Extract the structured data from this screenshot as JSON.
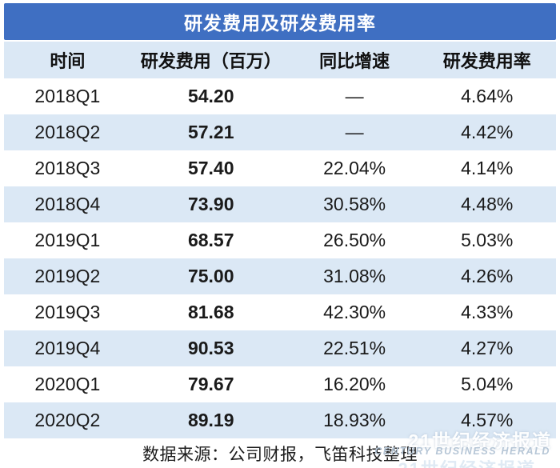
{
  "title": "研发费用及研发费用率",
  "table": {
    "headers": {
      "period": "时间",
      "expense": "研发费用（百万）",
      "yoy": "同比增速",
      "ratio": "研发费用率"
    },
    "rows": [
      {
        "period": "2018Q1",
        "expense": "54.20",
        "yoy": "—",
        "ratio": "4.64%"
      },
      {
        "period": "2018Q2",
        "expense": "57.21",
        "yoy": "—",
        "ratio": "4.42%"
      },
      {
        "period": "2018Q3",
        "expense": "57.40",
        "yoy": "22.04%",
        "ratio": "4.14%"
      },
      {
        "period": "2018Q4",
        "expense": "73.90",
        "yoy": "30.58%",
        "ratio": "4.48%"
      },
      {
        "period": "2019Q1",
        "expense": "68.57",
        "yoy": "26.50%",
        "ratio": "5.03%"
      },
      {
        "period": "2019Q2",
        "expense": "75.00",
        "yoy": "31.08%",
        "ratio": "4.26%"
      },
      {
        "period": "2019Q3",
        "expense": "81.68",
        "yoy": "42.30%",
        "ratio": "4.33%"
      },
      {
        "period": "2019Q4",
        "expense": "90.53",
        "yoy": "22.51%",
        "ratio": "4.27%"
      },
      {
        "period": "2020Q1",
        "expense": "79.67",
        "yoy": "16.20%",
        "ratio": "5.04%"
      },
      {
        "period": "2020Q2",
        "expense": "89.19",
        "yoy": "18.93%",
        "ratio": "4.57%"
      }
    ]
  },
  "footer": {
    "source": "数据来源：公司财报，飞笛科技整理"
  },
  "watermark": {
    "cn": "21世纪经济报道",
    "en": "CENTURY BUSINESS HERALD"
  },
  "colors": {
    "header_blue": "#3f6fc2",
    "row_alt_blue": "#dbe8f5",
    "text": "#1a1a1a"
  },
  "chart_data": {
    "type": "table",
    "title": "研发费用及研发费用率",
    "columns": [
      "时间",
      "研发费用（百万）",
      "同比增速",
      "研发费用率"
    ],
    "categories": [
      "2018Q1",
      "2018Q2",
      "2018Q3",
      "2018Q4",
      "2019Q1",
      "2019Q2",
      "2019Q3",
      "2019Q4",
      "2020Q1",
      "2020Q2"
    ],
    "series": [
      {
        "name": "研发费用（百万）",
        "values": [
          54.2,
          57.21,
          57.4,
          73.9,
          68.57,
          75.0,
          81.68,
          90.53,
          79.67,
          89.19
        ]
      },
      {
        "name": "同比增速(%)",
        "values": [
          null,
          null,
          22.04,
          30.58,
          26.5,
          31.08,
          42.3,
          22.51,
          16.2,
          18.93
        ]
      },
      {
        "name": "研发费用率(%)",
        "values": [
          4.64,
          4.42,
          4.14,
          4.48,
          5.03,
          4.26,
          4.33,
          4.27,
          5.04,
          4.57
        ]
      }
    ],
    "source_note": "数据来源：公司财报，飞笛科技整理"
  }
}
